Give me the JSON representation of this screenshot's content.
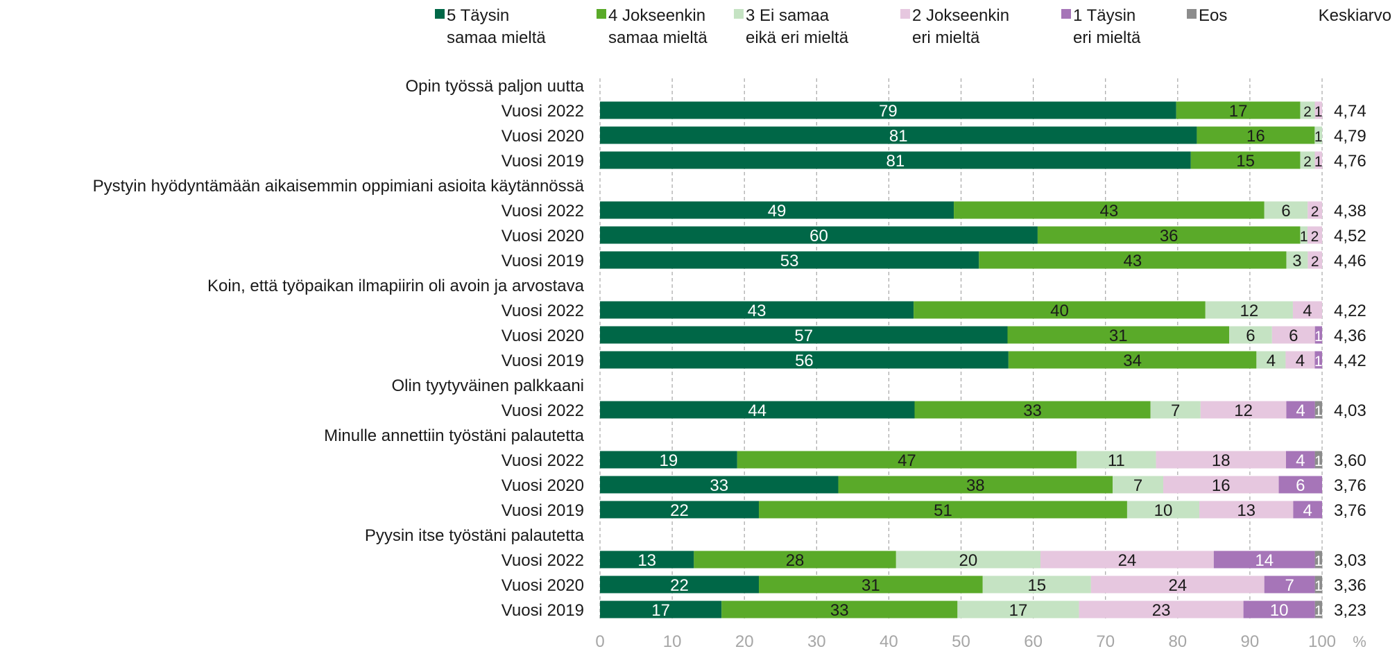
{
  "chart_data": {
    "type": "bar",
    "orientation": "horizontal",
    "stacked": true,
    "unit_label": "%",
    "xlim": [
      0,
      100
    ],
    "x_ticks": [
      "0",
      "10",
      "20",
      "30",
      "40",
      "50",
      "60",
      "70",
      "80",
      "90",
      "100"
    ],
    "grid": true,
    "legend_position": "top",
    "legend": [
      {
        "line1": "5 Täysin",
        "line2": "samaa mieltä",
        "color": "#006747"
      },
      {
        "line1": "4 Jokseenkin",
        "line2": "samaa mieltä",
        "color": "#5aaa29"
      },
      {
        "line1": "3 Ei samaa",
        "line2": "eikä eri mieltä",
        "color": "#c5e3c3"
      },
      {
        "line1": "2 Jokseenkin",
        "line2": "eri mieltä",
        "color": "#e6c7df"
      },
      {
        "line1": "1 Täysin",
        "line2": "eri mieltä",
        "color": "#a675b8"
      },
      {
        "line1": "Eos",
        "line2": "",
        "color": "#8c8c8c"
      }
    ],
    "average_header": "Keskiarvo",
    "groups": [
      {
        "title": "Opin työssä paljon uutta",
        "rows": [
          {
            "label": "Vuosi 2022",
            "values": [
              79,
              17,
              2,
              1,
              0,
              0
            ],
            "avg": "4,74"
          },
          {
            "label": "Vuosi 2020",
            "values": [
              81,
              16,
              1,
              0,
              0,
              0
            ],
            "avg": "4,79"
          },
          {
            "label": "Vuosi 2019",
            "values": [
              81,
              15,
              2,
              1,
              0,
              0
            ],
            "avg": "4,76"
          }
        ]
      },
      {
        "title": "Pystyin hyödyntämään aikaisemmin oppimiani asioita käytännössä",
        "rows": [
          {
            "label": "Vuosi 2022",
            "values": [
              49,
              43,
              6,
              2,
              0,
              0
            ],
            "avg": "4,38"
          },
          {
            "label": "Vuosi 2020",
            "values": [
              60,
              36,
              1,
              2,
              0,
              0
            ],
            "avg": "4,52"
          },
          {
            "label": "Vuosi 2019",
            "values": [
              53,
              43,
              3,
              2,
              0,
              0
            ],
            "avg": "4,46"
          }
        ]
      },
      {
        "title": "Koin, että työpaikan ilmapiirin oli avoin ja arvostava",
        "rows": [
          {
            "label": "Vuosi 2022",
            "values": [
              43,
              40,
              12,
              4,
              0,
              0
            ],
            "avg": "4,22"
          },
          {
            "label": "Vuosi 2020",
            "values": [
              57,
              31,
              6,
              6,
              1,
              0
            ],
            "avg": "4,36"
          },
          {
            "label": "Vuosi 2019",
            "values": [
              56,
              34,
              4,
              4,
              1,
              0
            ],
            "avg": "4,42"
          }
        ]
      },
      {
        "title": "Olin tyytyväinen palkkaani",
        "rows": [
          {
            "label": "Vuosi 2022",
            "values": [
              44,
              33,
              7,
              12,
              4,
              1
            ],
            "avg": "4,03"
          }
        ]
      },
      {
        "title": "Minulle annettiin työstäni palautetta",
        "rows": [
          {
            "label": "Vuosi 2022",
            "values": [
              19,
              47,
              11,
              18,
              4,
              1
            ],
            "avg": "3,60"
          },
          {
            "label": "Vuosi 2020",
            "values": [
              33,
              38,
              7,
              16,
              6,
              0
            ],
            "avg": "3,76"
          },
          {
            "label": "Vuosi 2019",
            "values": [
              22,
              51,
              10,
              13,
              4,
              0
            ],
            "avg": "3,76"
          }
        ]
      },
      {
        "title": "Pyysin itse työstäni palautetta",
        "rows": [
          {
            "label": "Vuosi 2022",
            "values": [
              13,
              28,
              20,
              24,
              14,
              1
            ],
            "avg": "3,03"
          },
          {
            "label": "Vuosi 2020",
            "values": [
              22,
              31,
              15,
              24,
              7,
              1
            ],
            "avg": "3,36"
          },
          {
            "label": "Vuosi 2019",
            "values": [
              17,
              33,
              17,
              23,
              10,
              1
            ],
            "avg": "3,23"
          }
        ]
      }
    ]
  }
}
